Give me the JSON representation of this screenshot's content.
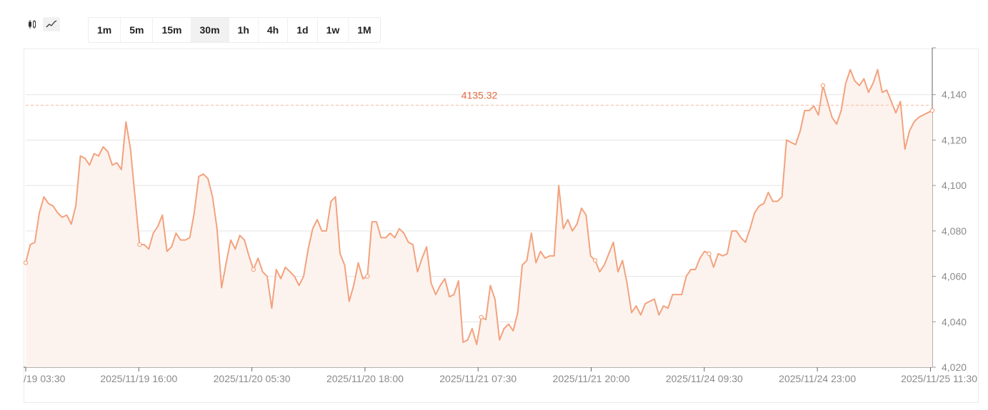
{
  "toolbar": {
    "chart_types": [
      {
        "icon": "candlestick-icon",
        "active": false
      },
      {
        "icon": "line-chart-icon",
        "active": true
      }
    ],
    "intervals": [
      {
        "label": "1m",
        "active": false
      },
      {
        "label": "5m",
        "active": false
      },
      {
        "label": "15m",
        "active": false
      },
      {
        "label": "30m",
        "active": true
      },
      {
        "label": "1h",
        "active": false
      },
      {
        "label": "4h",
        "active": false
      },
      {
        "label": "1d",
        "active": false
      },
      {
        "label": "1w",
        "active": false
      },
      {
        "label": "1M",
        "active": false
      }
    ]
  },
  "colors": {
    "line": "#f2a27e",
    "fill": "#fdf3ee",
    "reference": "#f5b89c",
    "reference_label": "#e26a3e",
    "grid": "#e3e3e3",
    "tick_text": "#8a8a8a"
  },
  "chart_data": {
    "type": "area",
    "title": "",
    "xlabel": "",
    "ylabel": "",
    "ylim": [
      4020,
      4160
    ],
    "y_ticks": [
      4020,
      4040,
      4060,
      4080,
      4100,
      4120,
      4140
    ],
    "y_tick_labels": [
      "4,020",
      "4,040",
      "4,060",
      "4,080",
      "4,100",
      "4,120",
      "4,140"
    ],
    "x_tick_labels": [
      "/19 03:30",
      "2025/11/19 16:00",
      "2025/11/20 05:30",
      "2025/11/20 18:00",
      "2025/11/21 07:30",
      "2025/11/21 20:00",
      "2025/11/24 09:30",
      "2025/11/24 23:00",
      "2025/11/25 11:30"
    ],
    "reference_line": {
      "value": 4135.32,
      "label": "4135.32"
    },
    "grid": true,
    "values": [
      4066,
      4074,
      4075,
      4088,
      4095,
      4092,
      4091,
      4088,
      4086,
      4087,
      4083,
      4091,
      4113,
      4112,
      4109,
      4114,
      4113,
      4117,
      4115,
      4109,
      4110,
      4107,
      4128,
      4116,
      4095,
      4074,
      4074,
      4072,
      4079,
      4082,
      4087,
      4071,
      4073,
      4079,
      4076,
      4076,
      4077,
      4088,
      4104,
      4105,
      4103,
      4095,
      4081,
      4055,
      4066,
      4076,
      4072,
      4078,
      4076,
      4069,
      4063,
      4068,
      4062,
      4060,
      4046,
      4063,
      4059,
      4064,
      4062,
      4060,
      4056,
      4060,
      4072,
      4081,
      4085,
      4080,
      4080,
      4093,
      4095,
      4070,
      4065,
      4049,
      4056,
      4066,
      4059,
      4060,
      4084,
      4084,
      4077,
      4077,
      4079,
      4077,
      4081,
      4079,
      4075,
      4074,
      4062,
      4068,
      4073,
      4057,
      4052,
      4056,
      4059,
      4051,
      4052,
      4058,
      4031,
      4032,
      4037,
      4030,
      4042,
      4041,
      4056,
      4050,
      4032,
      4037,
      4039,
      4036,
      4044,
      4065,
      4067,
      4079,
      4066,
      4071,
      4068,
      4069,
      4069,
      4100,
      4081,
      4085,
      4080,
      4083,
      4090,
      4087,
      4069,
      4067,
      4062,
      4065,
      4070,
      4075,
      4062,
      4067,
      4057,
      4044,
      4047,
      4043,
      4048,
      4049,
      4050,
      4043,
      4047,
      4046,
      4052,
      4052,
      4052,
      4060,
      4063,
      4063,
      4068,
      4071,
      4070,
      4064,
      4070,
      4069,
      4070,
      4080,
      4080,
      4077,
      4075,
      4081,
      4088,
      4091,
      4092,
      4097,
      4093,
      4093,
      4095,
      4120,
      4119,
      4118,
      4124,
      4133,
      4133,
      4135,
      4131,
      4144,
      4137,
      4130,
      4127,
      4133,
      4145,
      4151,
      4146,
      4144,
      4147,
      4141,
      4145,
      4151,
      4141,
      4142,
      4137,
      4132,
      4137,
      4116,
      4124,
      4128,
      4130,
      4131,
      4132,
      4133
    ]
  }
}
